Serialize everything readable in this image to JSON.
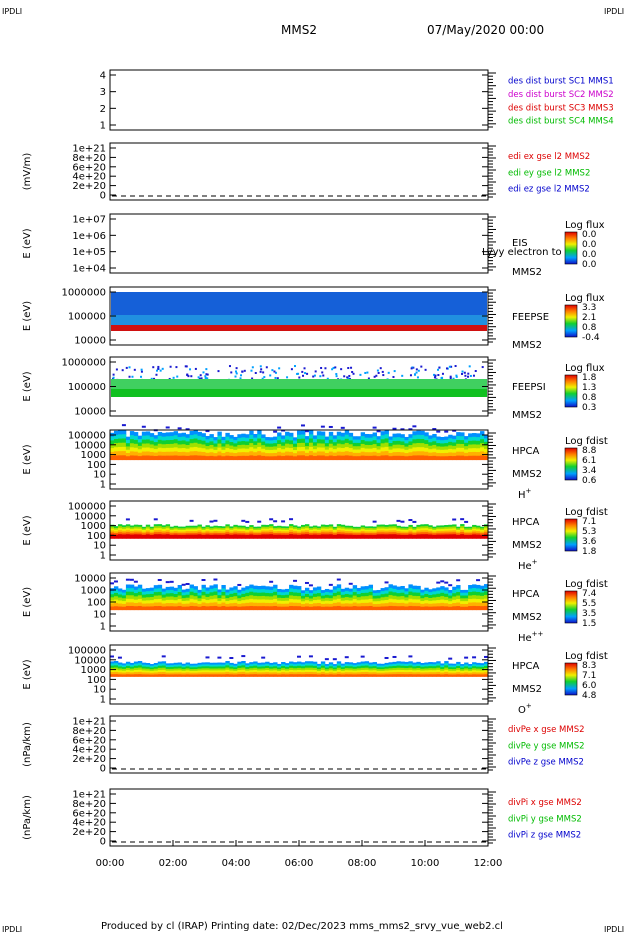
{
  "corner_labels": {
    "top_left": "IPDLI",
    "top_right": "IPDLI",
    "bottom_left": "IPDLI",
    "bottom_right": "IPDLI"
  },
  "header": {
    "spacecraft": "MMS2",
    "date": "07/May/2020 00:00"
  },
  "footer": {
    "text": "Produced by cl (IRAP)    Printing date: 02/Dec/2023    mms_mms2_srvy_vue_web2.cl"
  },
  "chart_data": [
    {
      "type": "line",
      "name": "des-dist-burst",
      "yticks": [
        "1",
        "2",
        "3",
        "4"
      ],
      "ylim": [
        1,
        4
      ],
      "ylabel": "",
      "legend": [
        {
          "text": "des dist burst SC1 MMS1",
          "color": "#0000cc"
        },
        {
          "text": "des dist burst SC2 MMS2",
          "color": "#cc00cc"
        },
        {
          "text": "des dist burst SC3 MMS3",
          "color": "#dd0000"
        },
        {
          "text": "des dist burst SC4 MMS4",
          "color": "#00bb00"
        }
      ]
    },
    {
      "type": "line",
      "name": "edi-e-gse",
      "yticks": [
        "0",
        "2e+20",
        "4e+20",
        "6e+20",
        "8e+20",
        "1e+21"
      ],
      "ylabel": "(mV/m)",
      "legend": [
        {
          "text": "edi ex gse l2 MMS2",
          "color": "#dd0000"
        },
        {
          "text": "edi ey gse l2 MMS2",
          "color": "#00bb00"
        },
        {
          "text": "edi ez gse l2 MMS2",
          "color": "#0000cc"
        }
      ]
    },
    {
      "type": "heatmap",
      "name": "eis",
      "yticks": [
        "1e+04",
        "1e+05",
        "1e+06",
        "1e+07"
      ],
      "ylabel": "E (eV)",
      "side_labels": [
        "EIS",
        "MMS2"
      ],
      "overlay_text": "Lyyy electron to",
      "colorbar": {
        "title": "Log flux",
        "ticks": [
          "0.0",
          "0.0",
          "0.0",
          "0.0"
        ]
      }
    },
    {
      "type": "heatmap",
      "name": "feepse",
      "yticks": [
        "10000",
        "100000",
        "1000000"
      ],
      "ylabel": "E (eV)",
      "side_labels": [
        "FEEPSE",
        "MMS2"
      ],
      "colorbar": {
        "title": "Log flux",
        "ticks": [
          "3.3",
          "2.1",
          "0.8",
          "-0.4"
        ]
      }
    },
    {
      "type": "heatmap",
      "name": "feepsi",
      "yticks": [
        "10000",
        "100000",
        "1000000"
      ],
      "ylabel": "E (eV)",
      "side_labels": [
        "FEEPSI",
        "MMS2"
      ],
      "colorbar": {
        "title": "Log flux",
        "ticks": [
          "1.8",
          "1.3",
          "0.8",
          "0.3"
        ]
      }
    },
    {
      "type": "heatmap",
      "name": "hpca-h",
      "yticks": [
        "1",
        "10",
        "100",
        "1000",
        "10000",
        "100000"
      ],
      "ylabel": "E (eV)",
      "side_labels": [
        "HPCA",
        "MMS2"
      ],
      "species": "H",
      "charge": "+",
      "colorbar": {
        "title": "Log fdist",
        "ticks": [
          "8.8",
          "6.1",
          "3.4",
          "0.6"
        ]
      }
    },
    {
      "type": "heatmap",
      "name": "hpca-he",
      "yticks": [
        "1",
        "10",
        "100",
        "1000",
        "10000",
        "100000"
      ],
      "ylabel": "E (eV)",
      "side_labels": [
        "HPCA",
        "MMS2"
      ],
      "species": "He",
      "charge": "+",
      "colorbar": {
        "title": "Log fdist",
        "ticks": [
          "7.1",
          "5.3",
          "3.6",
          "1.8"
        ]
      }
    },
    {
      "type": "heatmap",
      "name": "hpca-he2",
      "yticks": [
        "1",
        "10",
        "100",
        "1000",
        "10000"
      ],
      "ylabel": "E (eV)",
      "side_labels": [
        "HPCA",
        "MMS2"
      ],
      "species": "He",
      "charge": "++",
      "colorbar": {
        "title": "Log fdist",
        "ticks": [
          "7.4",
          "5.5",
          "3.5",
          "1.5"
        ]
      }
    },
    {
      "type": "heatmap",
      "name": "hpca-o",
      "yticks": [
        "1",
        "10",
        "100",
        "1000",
        "10000",
        "100000"
      ],
      "ylabel": "E (eV)",
      "side_labels": [
        "HPCA",
        "MMS2"
      ],
      "species": "O",
      "charge": "+",
      "colorbar": {
        "title": "Log fdist",
        "ticks": [
          "8.3",
          "7.1",
          "6.0",
          "4.8"
        ]
      }
    },
    {
      "type": "line",
      "name": "divpe",
      "yticks": [
        "0",
        "2e+20",
        "4e+20",
        "6e+20",
        "8e+20",
        "1e+21"
      ],
      "ylabel": "(nPa/km)",
      "legend": [
        {
          "text": "divPe x gse MMS2",
          "color": "#dd0000"
        },
        {
          "text": "divPe y gse MMS2",
          "color": "#00bb00"
        },
        {
          "text": "divPe z gse MMS2",
          "color": "#0000cc"
        }
      ]
    },
    {
      "type": "line",
      "name": "divpi",
      "yticks": [
        "0",
        "2e+20",
        "4e+20",
        "6e+20",
        "8e+20",
        "1e+21"
      ],
      "ylabel": "(nPa/km)",
      "legend": [
        {
          "text": "divPi x gse MMS2",
          "color": "#dd0000"
        },
        {
          "text": "divPi y gse MMS2",
          "color": "#00bb00"
        },
        {
          "text": "divPi z gse MMS2",
          "color": "#0000cc"
        }
      ]
    }
  ],
  "xaxis": {
    "ticks": [
      "00:00",
      "02:00",
      "04:00",
      "06:00",
      "08:00",
      "10:00",
      "12:00"
    ]
  }
}
